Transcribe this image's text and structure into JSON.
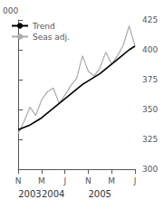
{
  "chart_data": {
    "type": "line",
    "title": "",
    "ylabel": "000",
    "x": [
      0,
      1,
      2,
      3,
      4,
      5,
      6,
      7,
      8,
      9,
      10,
      11,
      12,
      13,
      14,
      15,
      16,
      17,
      18,
      19,
      20
    ],
    "series": [
      {
        "name": "Trend",
        "color": "#000000",
        "values": [
          333,
          335,
          337,
          340,
          343,
          347,
          351,
          355,
          359,
          363,
          367,
          371,
          374,
          377,
          380,
          384,
          388,
          392,
          396,
          400,
          403
        ]
      },
      {
        "name": "Seas adj.",
        "color": "#aaaaaa",
        "values": [
          330,
          340,
          352,
          345,
          358,
          365,
          368,
          355,
          362,
          370,
          376,
          395,
          382,
          378,
          385,
          398,
          388,
          395,
          404,
          420,
          403
        ]
      }
    ],
    "xlim": [
      0,
      20
    ],
    "xticks": [
      {
        "value": 0,
        "label": "N"
      },
      {
        "value": 4,
        "label": "M"
      },
      {
        "value": 8,
        "label": "J"
      },
      {
        "value": 12,
        "label": "N"
      },
      {
        "value": 16,
        "label": "M"
      },
      {
        "value": 20,
        "label": "J"
      }
    ],
    "ylim": [
      300,
      425
    ],
    "yticks": [
      300,
      325,
      350,
      375,
      400,
      425
    ],
    "annotations": [
      {
        "text": "2003",
        "x": 0
      },
      {
        "text": "2004",
        "x": 4
      },
      {
        "text": "2005",
        "x": 12
      }
    ],
    "legend": "upper left",
    "grid": false
  }
}
